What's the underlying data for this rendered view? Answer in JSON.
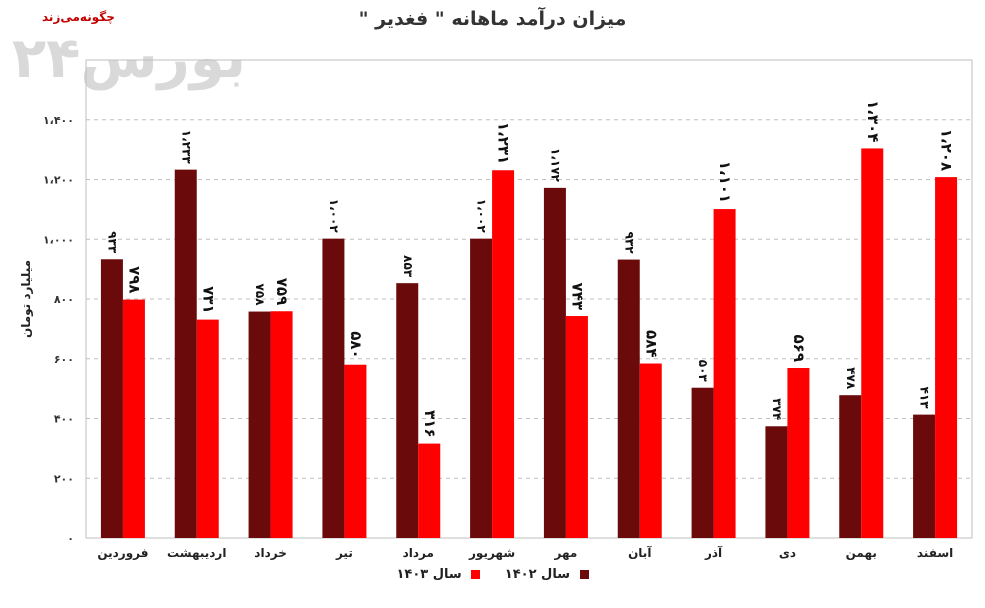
{
  "logo": {
    "small_text": "چگونه‌می‌زند",
    "big_text": "بورس۲۴"
  },
  "chart_data": {
    "type": "bar",
    "title": "میزان درآمد ماهانه \" فغدیر \"",
    "ylabel": "میلیارد تومان",
    "ylim": [
      0,
      1600
    ],
    "yticks": [
      0,
      200,
      400,
      600,
      800,
      1000,
      1200,
      1400,
      1600
    ],
    "ytick_labels": [
      "۰",
      "۲۰۰",
      "۴۰۰",
      "۶۰۰",
      "۸۰۰",
      "۱،۰۰۰",
      "۱،۲۰۰",
      "۱،۴۰۰",
      ""
    ],
    "categories": [
      "فروردین",
      "اردیبهشت",
      "خرداد",
      "تیر",
      "مرداد",
      "شهریور",
      "مهر",
      "آبان",
      "آذر",
      "دی",
      "بهمن",
      "اسفند"
    ],
    "series": [
      {
        "name": "سال ۱۴۰۲",
        "color": "#6b0a0a",
        "values": [
          933,
          1233,
          758,
          1002,
          853,
          1002,
          1172,
          932,
          503,
          374,
          478,
          413
        ],
        "labels": [
          "۹۳۳",
          "۱،۲۳۳",
          "۷۵۸",
          "۱،۰۰۲",
          "۸۵۳",
          "۱،۰۰۲",
          "۱،۱۷۲",
          "۹۳۲",
          "۵۰۳",
          "۳۷۴",
          "۴۷۸",
          "۴۱۳"
        ]
      },
      {
        "name": "سال ۱۴۰۳",
        "color": "#ff0000",
        "values": [
          798,
          731,
          759,
          580,
          316,
          1231,
          743,
          584,
          1101,
          569,
          1304,
          1208
        ],
        "labels": [
          "۷۹۸",
          "۷۳۱",
          "۷۵۹",
          "۵۸۰",
          "۳۱۶",
          "۱،۲۳۱",
          "۷۴۳",
          "۵۸۴",
          "۱،۱۰۱",
          "۵۶۹",
          "۱،۳۰۴",
          "۱،۲۰۸"
        ]
      }
    ],
    "grid": true,
    "legend_position": "bottom"
  }
}
